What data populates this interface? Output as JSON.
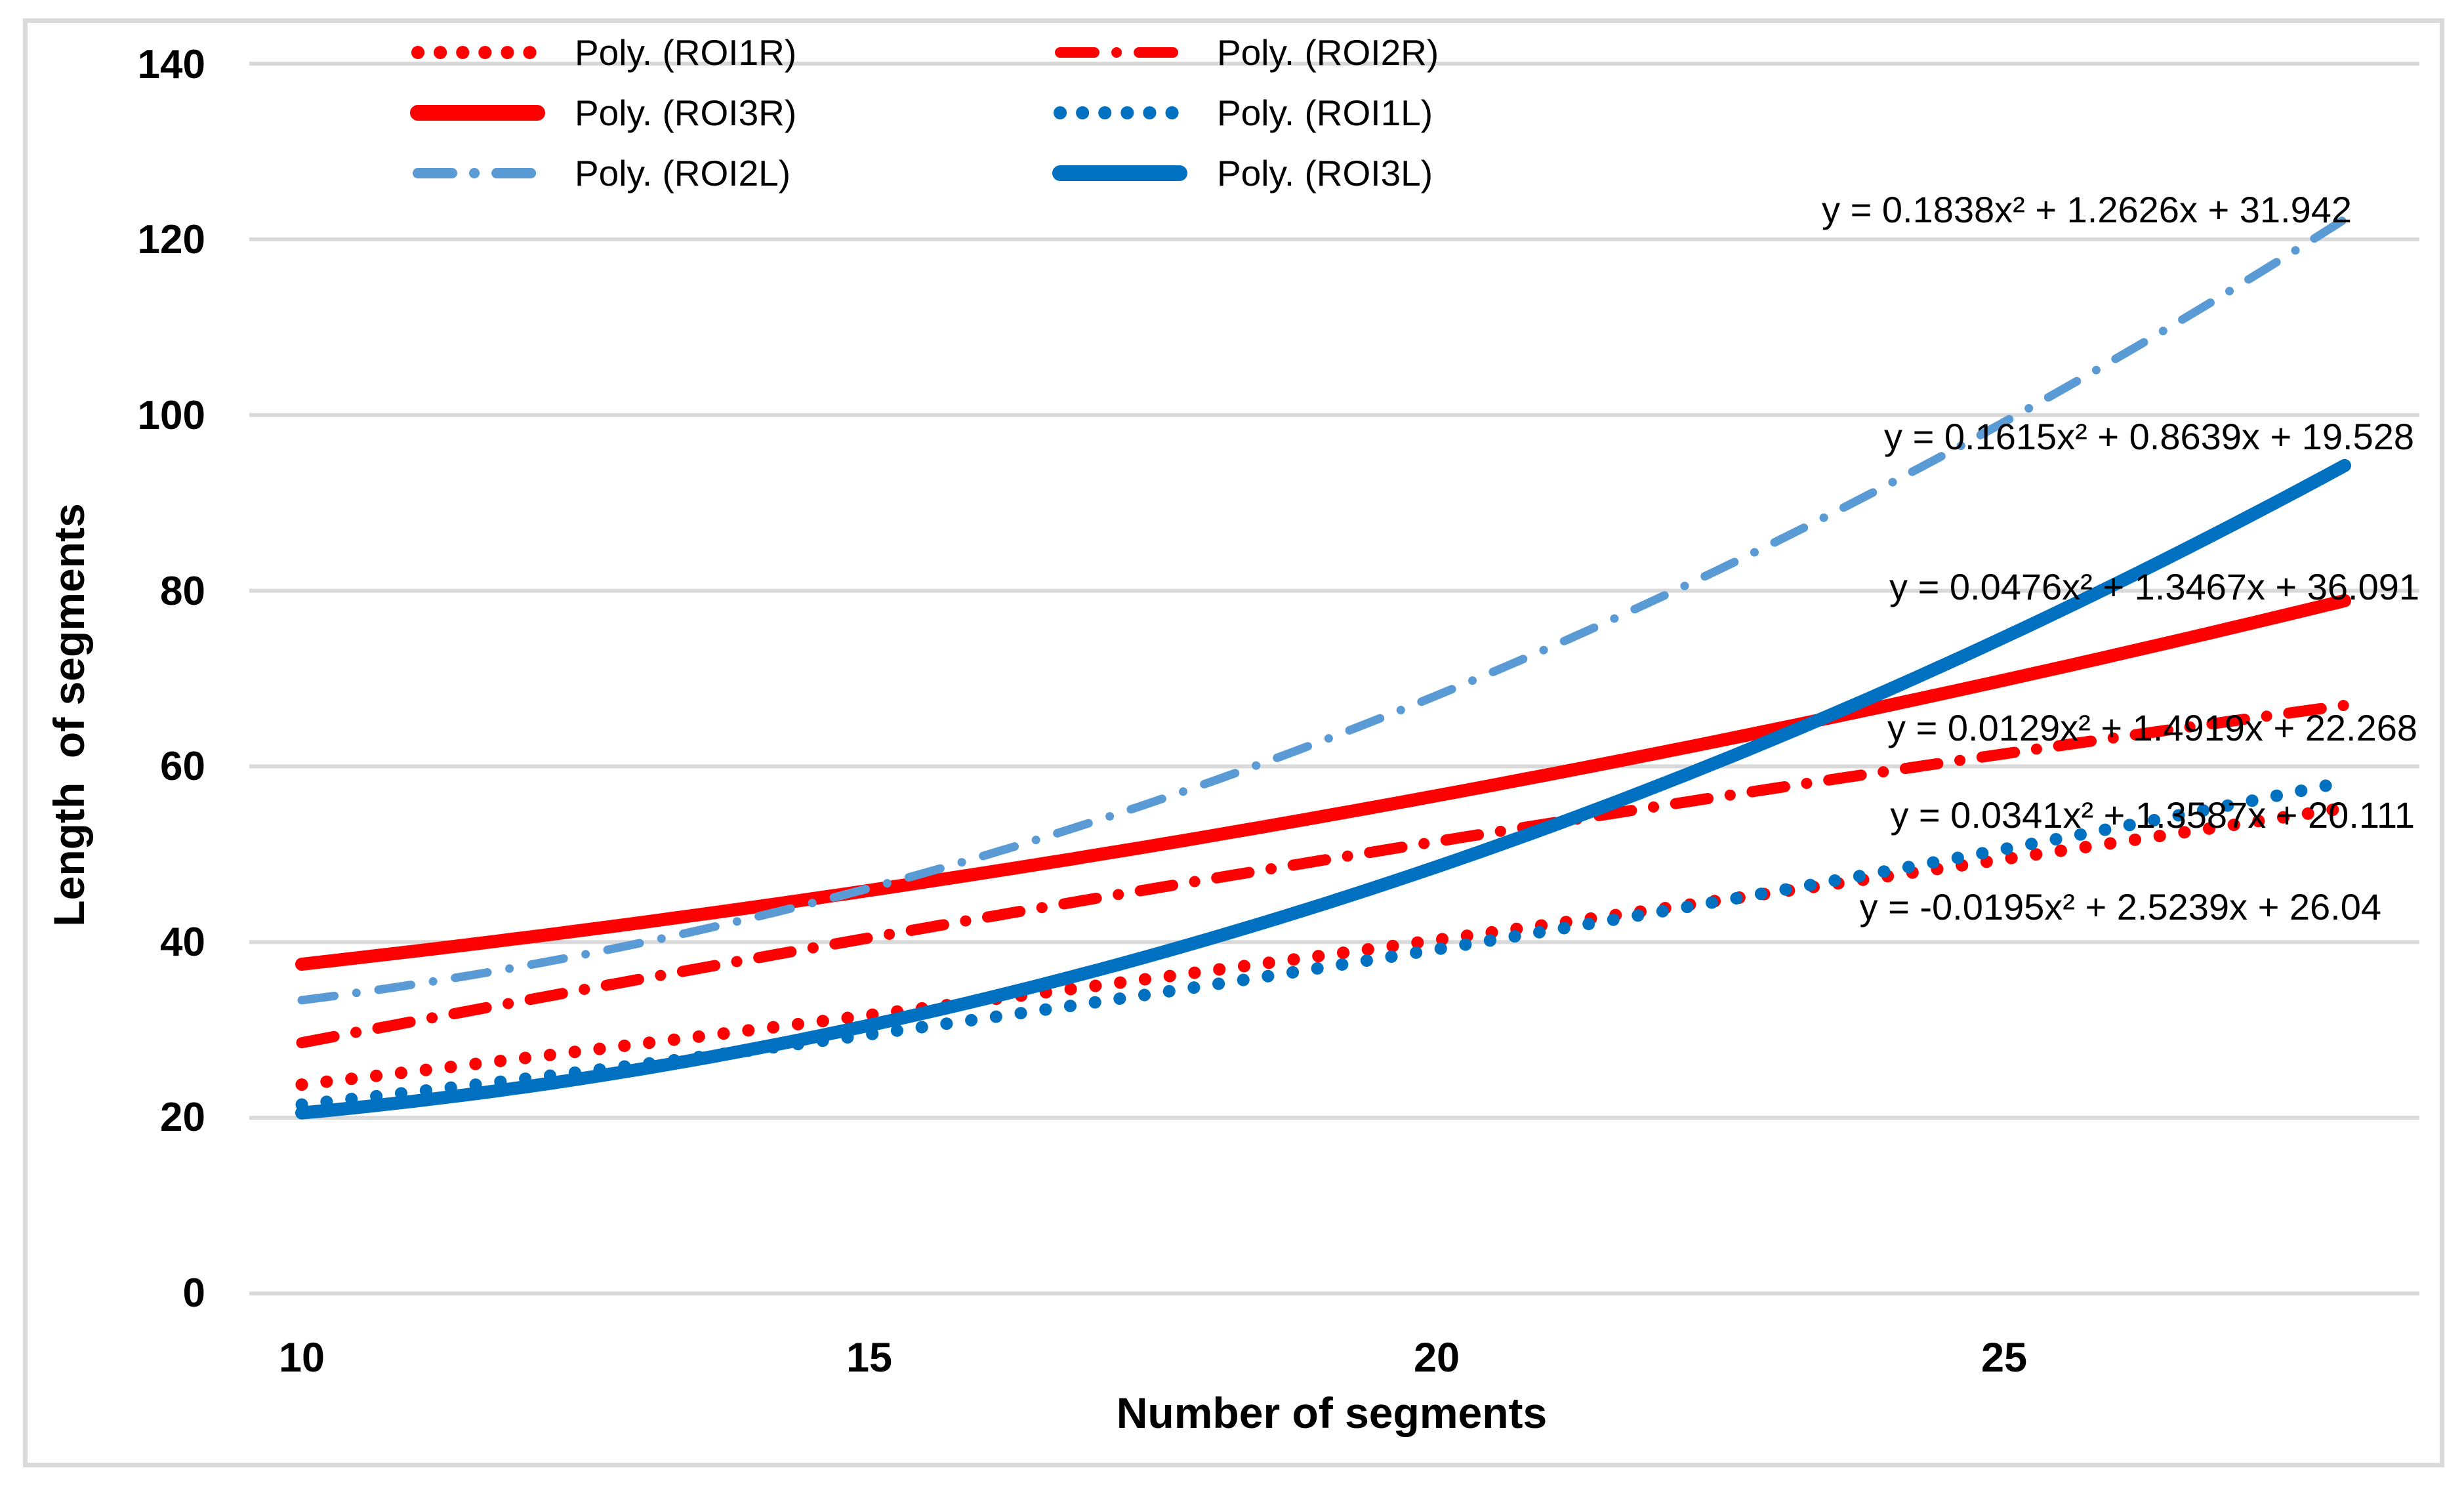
{
  "colors": {
    "red": "#FF0000",
    "blue": "#0070C0",
    "light_blue": "#5B9BD5",
    "gridline": "#D9D9D9",
    "border": "#DADADA",
    "text": "#000000"
  },
  "axes": {
    "x": {
      "title": "Number of segments",
      "tick_labels": [
        "10",
        "15",
        "20",
        "25"
      ]
    },
    "y": {
      "title": "Length  of segments",
      "tick_labels": [
        "0",
        "20",
        "40",
        "60",
        "80",
        "100",
        "120",
        "140"
      ]
    }
  },
  "legend": {
    "items": [
      {
        "label": "Poly. (ROI1R)",
        "color": "#FF0000",
        "line_style": "dotted"
      },
      {
        "label": "Poly. (ROI2R)",
        "color": "#FF0000",
        "line_style": "dash-dot"
      },
      {
        "label": "Poly. (ROI3R)",
        "color": "#FF0000",
        "line_style": "solid"
      },
      {
        "label": "Poly. (ROI1L)",
        "color": "#0070C0",
        "line_style": "dotted"
      },
      {
        "label": "Poly. (ROI2L)",
        "color": "#5B9BD5",
        "line_style": "dash-dot"
      },
      {
        "label": "Poly. (ROI3L)",
        "color": "#0070C0",
        "line_style": "solid"
      }
    ]
  },
  "chart_data": {
    "type": "line",
    "title": "",
    "xlabel": "Number of segments",
    "ylabel": "Length  of segments",
    "x_ticks": [
      10,
      15,
      20,
      25
    ],
    "y_ticks": [
      0,
      20,
      40,
      60,
      80,
      100,
      120,
      140
    ],
    "xlim": [
      9.5,
      28.7
    ],
    "ylim": [
      0,
      145
    ],
    "x_data_range": [
      10,
      28
    ],
    "grid": "horizontal-only",
    "legend_position": "top",
    "series": [
      {
        "name": "ROI1R",
        "label": "Poly. (ROI1R)",
        "color": "#FF0000",
        "line_style": "dotted",
        "trendline": {
          "a": 0.0129,
          "b": 1.4919,
          "c": 22.268
        },
        "equation": "y = 0.0129x² + 1.4919x + 22.268",
        "y_start": 23.8,
        "y_end": 55.3
      },
      {
        "name": "ROI2R",
        "label": "Poly. (ROI2R)",
        "color": "#FF0000",
        "line_style": "dash-dot",
        "trendline": {
          "a": -0.0195,
          "b": 2.5239,
          "c": 26.04
        },
        "equation": "y = -0.0195x² + 2.5239x + 26.04",
        "y_start": 28.5,
        "y_end": 67.0
      },
      {
        "name": "ROI3R",
        "label": "Poly. (ROI3R)",
        "color": "#FF0000",
        "line_style": "solid",
        "trendline": {
          "a": 0.0476,
          "b": 1.3467,
          "c": 36.091
        },
        "equation": "y = 0.0476x² + 1.3467x + 36.091",
        "y_start": 37.5,
        "y_end": 78.9
      },
      {
        "name": "ROI1L",
        "label": "Poly. (ROI1L)",
        "color": "#0070C0",
        "line_style": "dotted",
        "trendline": {
          "a": 0.0341,
          "b": 1.3587,
          "c": 20.111
        },
        "equation": "y = 0.0341x² + 1.3587x + 20.111",
        "y_start": 21.5,
        "y_end": 58.2
      },
      {
        "name": "ROI2L",
        "label": "Poly. (ROI2L)",
        "color": "#5B9BD5",
        "line_style": "dash-dot",
        "trendline": {
          "a": 0.1838,
          "b": 1.2626,
          "c": 31.942
        },
        "equation": "y = 0.1838x² + 1.2626x + 31.942",
        "y_start": 33.4,
        "y_end": 122.3
      },
      {
        "name": "ROI3L",
        "label": "Poly. (ROI3L)",
        "color": "#0070C0",
        "line_style": "solid",
        "trendline": {
          "a": 0.1615,
          "b": 0.8639,
          "c": 19.528
        },
        "equation": "y = 0.1615x² + 0.8639x + 19.528",
        "y_start": 20.6,
        "y_end": 94.2
      }
    ]
  }
}
